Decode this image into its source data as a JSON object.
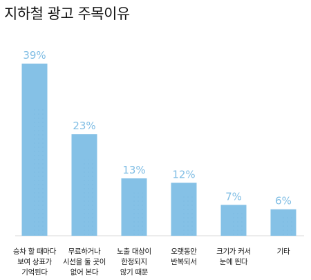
{
  "chart_data": {
    "type": "bar",
    "title": "지하철 광고 주목이유",
    "categories": [
      "승차 할 때마다 보여 상표가 기억된다",
      "무료하거나 시선을 둘 곳이 없어 본다",
      "노출 대상이 한정되지 않기 때문",
      "오랫동안 반복되서",
      "크기가 커서 눈에 띈다",
      "기타"
    ],
    "category_lines": [
      [
        "승차 할 때마다",
        "보여 상표가",
        "기억된다"
      ],
      [
        "무료하거나",
        "시선을 둘 곳이",
        "없어 본다"
      ],
      [
        "노출 대상이",
        "한정되지",
        "않기 때문"
      ],
      [
        "오랫동안",
        "반복되서"
      ],
      [
        "크기가 커서",
        "눈에 띈다"
      ],
      [
        "기타"
      ]
    ],
    "values": [
      39,
      23,
      13,
      12,
      7,
      6
    ],
    "value_labels": [
      "39%",
      "23%",
      "13%",
      "12%",
      "7%",
      "6%"
    ],
    "ylim": [
      0,
      39
    ],
    "bar_color": "#85c1e6",
    "label_color": "#7fbde4",
    "grid": false,
    "legend": "none"
  }
}
